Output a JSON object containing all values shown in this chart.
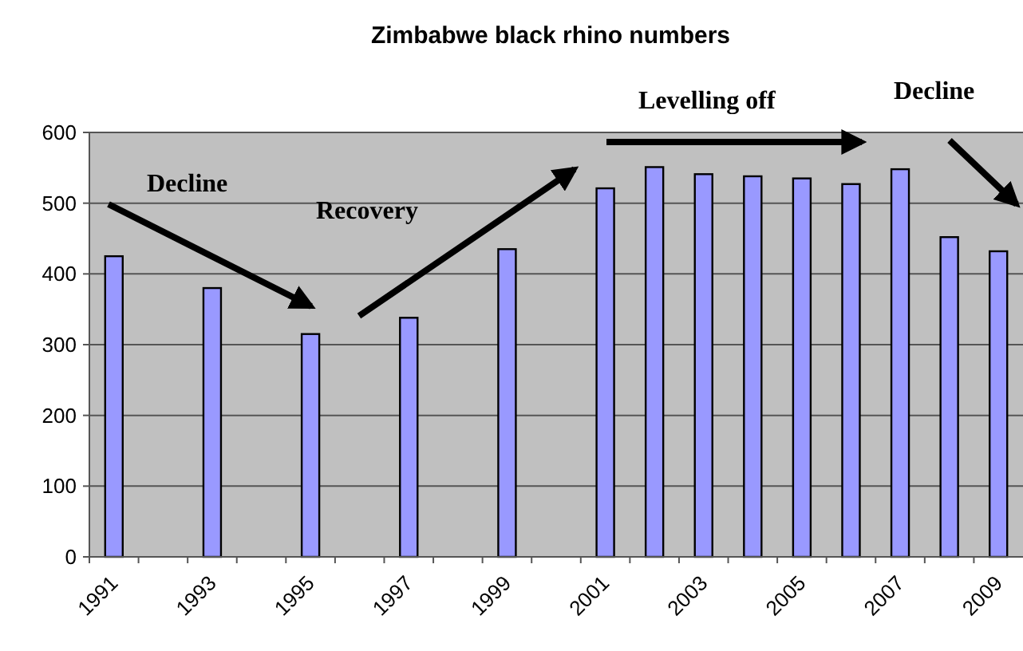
{
  "chart_data": {
    "type": "bar",
    "title": "Zimbabwe black rhino numbers",
    "categories": [
      "1991",
      null,
      "1993",
      null,
      "1995",
      null,
      "1997",
      null,
      "1999",
      null,
      "2001",
      null,
      "2003",
      null,
      "2005",
      null,
      "2007",
      null,
      "2009"
    ],
    "values": [
      425,
      null,
      380,
      null,
      315,
      null,
      338,
      null,
      435,
      null,
      521,
      551,
      541,
      538,
      535,
      527,
      548,
      452,
      432
    ],
    "color": "#9999ff",
    "ylim": [
      0,
      600
    ],
    "yticks": [
      0,
      100,
      200,
      300,
      400,
      500,
      600
    ],
    "grid": "y",
    "annotations": [
      "Decline",
      "Recovery",
      "Levelling off",
      "Decline"
    ]
  }
}
